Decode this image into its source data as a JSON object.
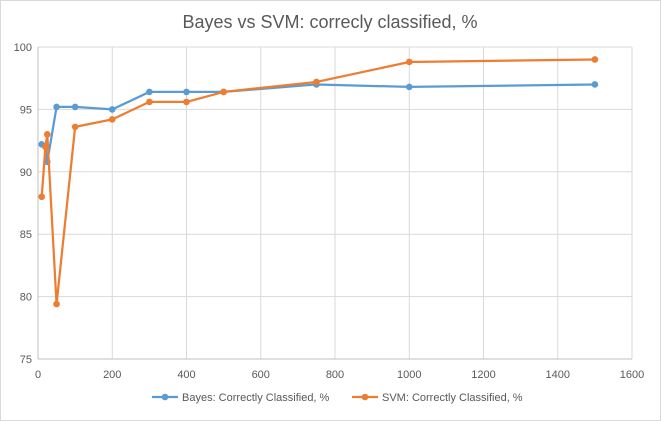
{
  "chart_data": {
    "type": "line",
    "title": "Bayes vs SVM: correcly classified, %",
    "xlabel": "",
    "ylabel": "",
    "xlim": [
      0,
      1600
    ],
    "ylim": [
      75,
      100
    ],
    "x_ticks": [
      0,
      200,
      400,
      600,
      800,
      1000,
      1200,
      1400,
      1600
    ],
    "y_ticks": [
      75,
      80,
      85,
      90,
      95,
      100
    ],
    "grid": true,
    "legend_position": "bottom",
    "series": [
      {
        "name": "Bayes: Correctly Classified, %",
        "color": "#5b9bd5",
        "x": [
          10,
          20,
          25,
          50,
          100,
          200,
          300,
          400,
          500,
          750,
          1000,
          1500
        ],
        "y": [
          92.2,
          92.0,
          90.8,
          95.2,
          95.2,
          95.0,
          96.4,
          96.4,
          96.4,
          97.0,
          96.8,
          97.0
        ]
      },
      {
        "name": "SVM: Correctly Classified, %",
        "color": "#ed7d31",
        "x": [
          10,
          20,
          25,
          50,
          100,
          200,
          300,
          400,
          500,
          750,
          1000,
          1500
        ],
        "y": [
          88.0,
          92.0,
          93.0,
          79.4,
          93.6,
          94.2,
          95.6,
          95.6,
          96.4,
          97.2,
          98.8,
          99.0
        ]
      }
    ]
  },
  "colors": {
    "grid": "#d9d9d9",
    "axis": "#bfbfbf",
    "text": "#595959"
  }
}
